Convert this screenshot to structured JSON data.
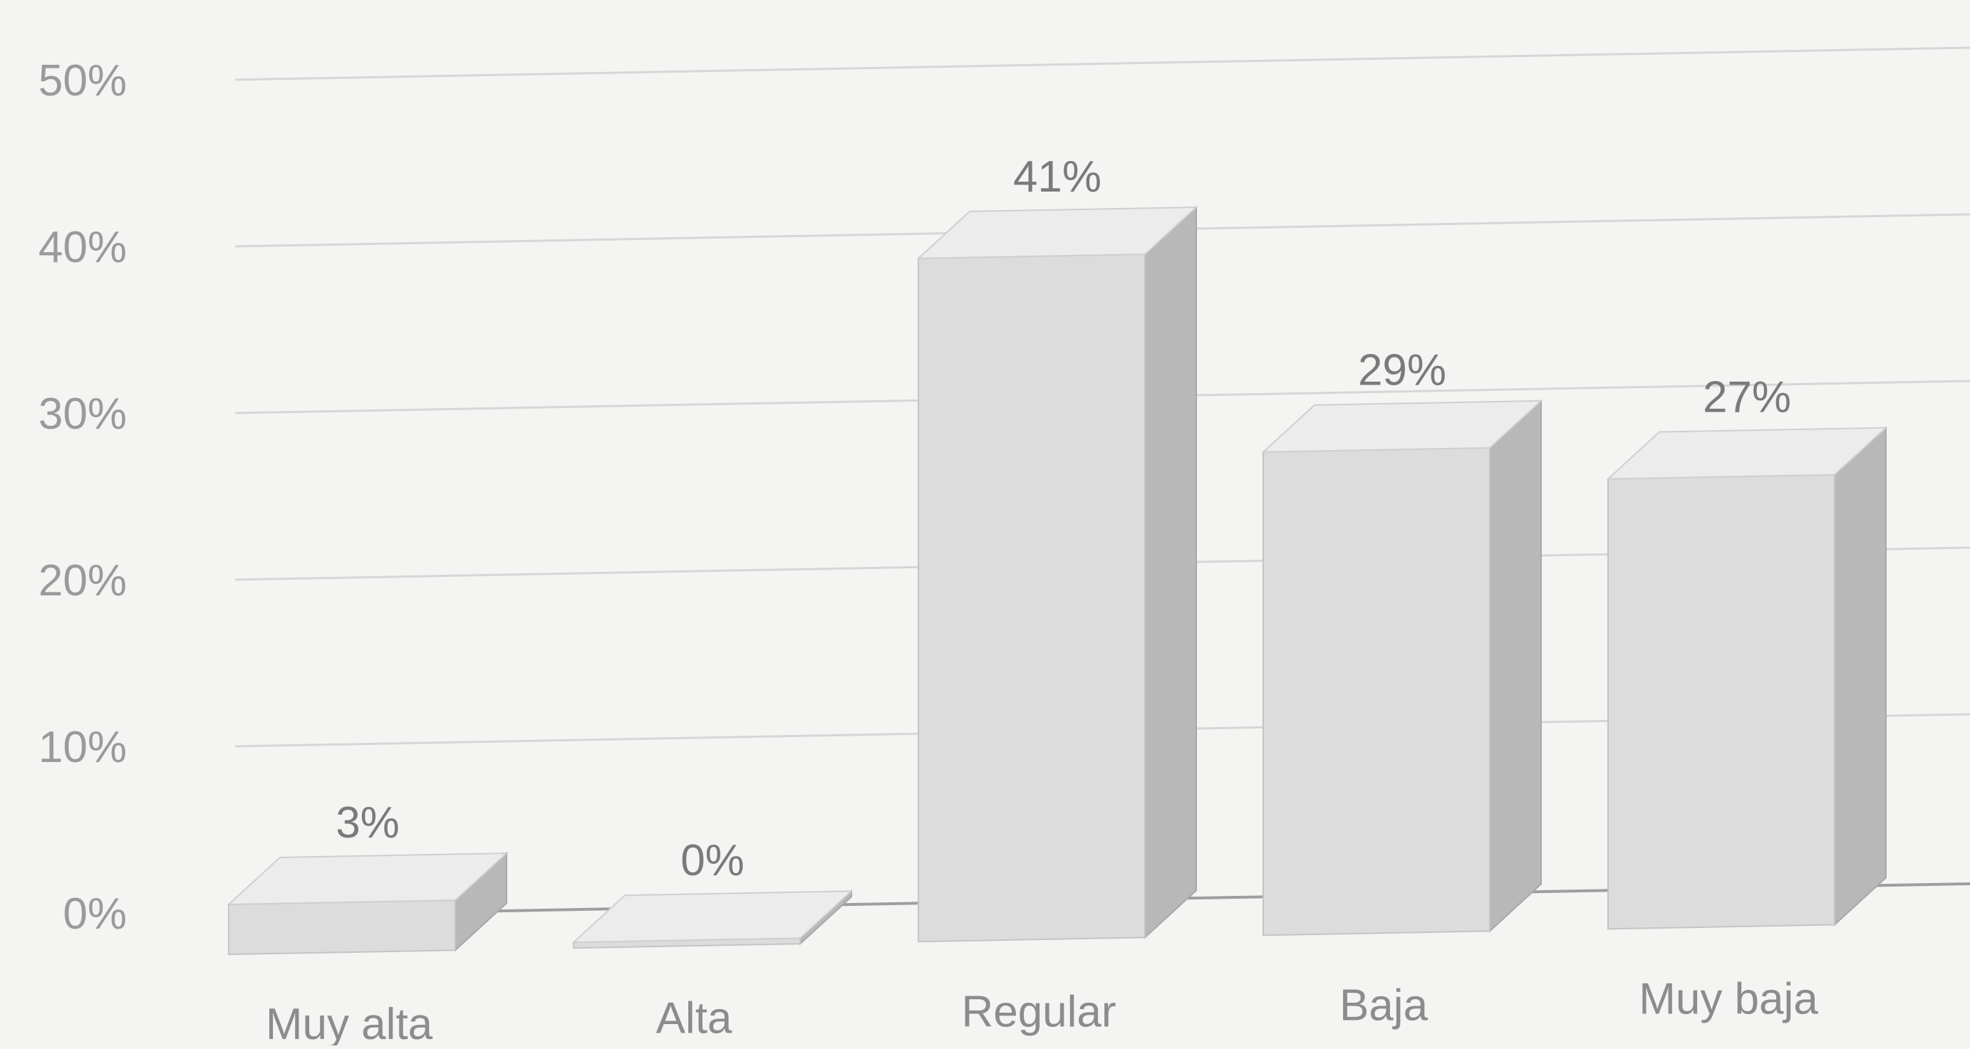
{
  "chart_data": {
    "type": "bar",
    "categories": [
      "Muy alta",
      "Alta",
      "Regular",
      "Baja",
      "Muy baja"
    ],
    "values": [
      3,
      0,
      41,
      29,
      27
    ],
    "data_labels": [
      "3%",
      "0%",
      "41%",
      "29%",
      "27%"
    ],
    "y_ticks": [
      {
        "value": 0,
        "label": "0%"
      },
      {
        "value": 10,
        "label": "10%"
      },
      {
        "value": 20,
        "label": "20%"
      },
      {
        "value": 30,
        "label": "30%"
      },
      {
        "value": 40,
        "label": "40%"
      },
      {
        "value": 50,
        "label": "50%"
      }
    ],
    "ylim": [
      0,
      50
    ],
    "grid": true,
    "legend": "none",
    "style": "3d-column",
    "colors": {
      "bar_front": "#dcdcdc",
      "bar_top": "#ececec",
      "bar_side": "#b8b8b8",
      "grid": "#d6d6d6",
      "axis": "#9e9e9e"
    }
  }
}
